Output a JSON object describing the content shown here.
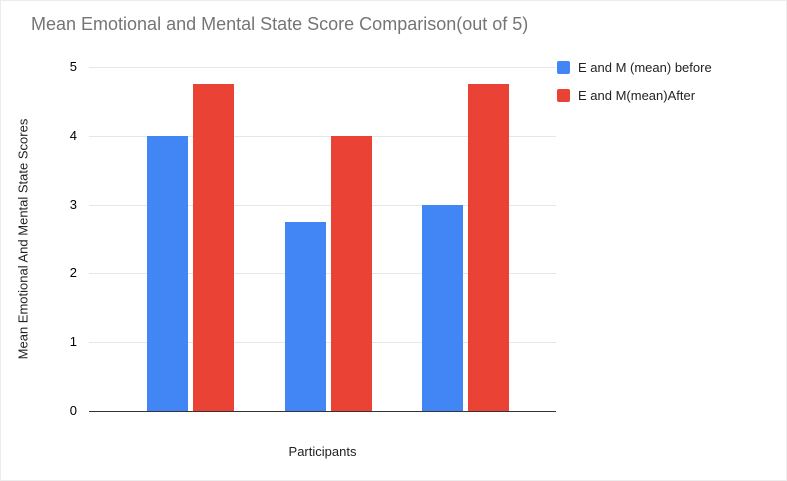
{
  "title": "Mean Emotional and Mental State Score Comparison(out of 5)",
  "colors": {
    "series_before": "#4285F4",
    "series_after": "#EA4335",
    "gridline": "#e6e6e6",
    "baseline": "#333333",
    "title_text": "#757575"
  },
  "chart_data": {
    "type": "bar",
    "title": "Mean Emotional and Mental State Score Comparison(out of 5)",
    "xlabel": "Participants",
    "ylabel": "Mean Emotional And Mental State Scores",
    "categories": [
      "",
      "",
      ""
    ],
    "series": [
      {
        "name": "E and M (mean) before",
        "color": "#4285F4",
        "values": [
          4,
          2.75,
          3
        ]
      },
      {
        "name": "E and M(mean)After",
        "color": "#EA4335",
        "values": [
          4.75,
          4,
          4.75
        ]
      }
    ],
    "ylim": [
      0,
      5
    ],
    "yticks": [
      0,
      1,
      2,
      3,
      4,
      5
    ],
    "grid": true,
    "x_tick_labels_visible": false,
    "legend_position": "top-right"
  }
}
